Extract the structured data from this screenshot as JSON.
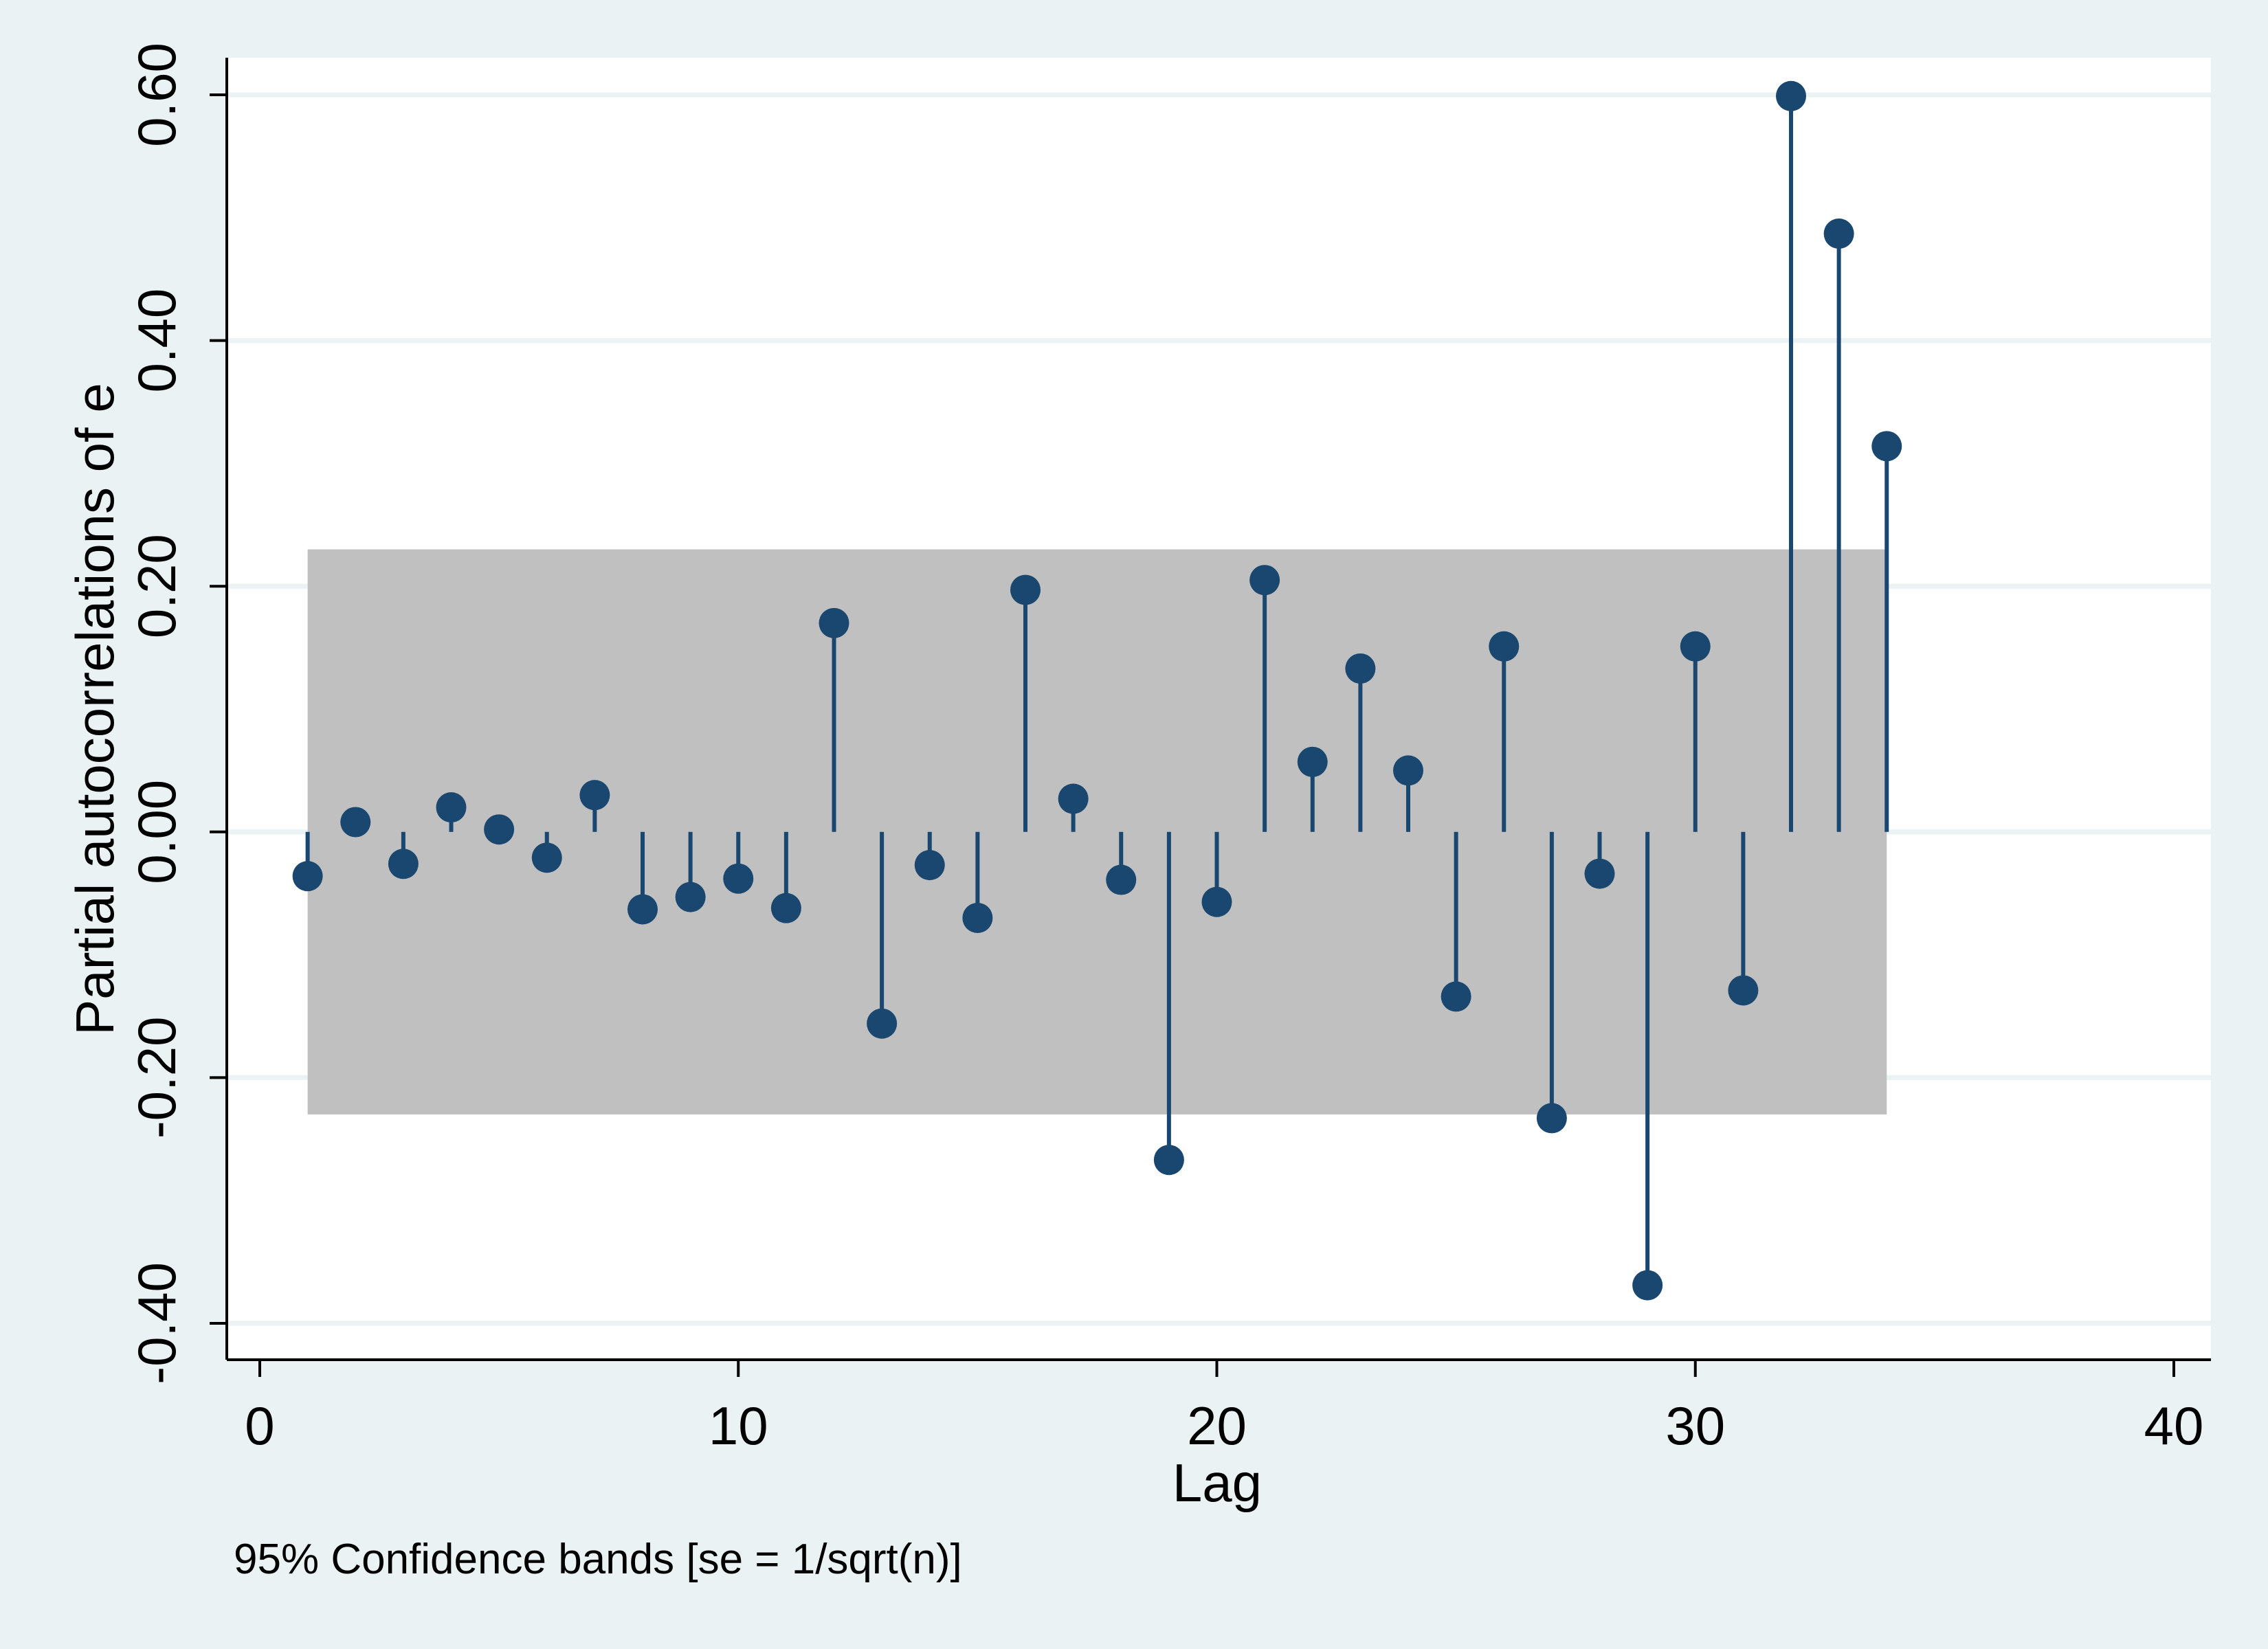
{
  "chart_data": {
    "type": "scatter",
    "subtype": "stem",
    "ylabel": "Partial autocorrelations of e",
    "xlabel": "Lag",
    "note": "95% Confidence bands [se = 1/sqrt(n)]",
    "xlim": [
      0,
      40
    ],
    "ylim": [
      -0.4,
      0.6
    ],
    "xticks": [
      "0",
      "10",
      "20",
      "30",
      "40"
    ],
    "xtick_values": [
      0,
      10,
      20,
      30,
      40
    ],
    "yticks": [
      "-0.40",
      "-0.20",
      "0.00",
      "0.20",
      "0.40",
      "0.60"
    ],
    "ytick_values": [
      -0.4,
      -0.2,
      0.0,
      0.2,
      0.4,
      0.6
    ],
    "grid": true,
    "confidence_band": {
      "from_lag": 1,
      "to_lag": 34,
      "upper": 0.23,
      "lower": -0.23
    },
    "x": [
      1,
      2,
      3,
      4,
      5,
      6,
      7,
      8,
      9,
      10,
      11,
      12,
      13,
      14,
      15,
      16,
      17,
      18,
      19,
      20,
      21,
      22,
      23,
      24,
      25,
      26,
      27,
      28,
      29,
      30,
      31,
      32,
      33,
      34
    ],
    "values": [
      -0.036,
      0.008,
      -0.026,
      0.02,
      0.002,
      -0.021,
      0.03,
      -0.063,
      -0.053,
      -0.038,
      -0.062,
      0.17,
      -0.156,
      -0.027,
      -0.07,
      0.197,
      0.027,
      -0.039,
      -0.267,
      -0.057,
      0.205,
      0.057,
      0.133,
      0.05,
      -0.134,
      0.151,
      -0.233,
      -0.034,
      -0.369,
      0.151,
      -0.129,
      0.599,
      0.487,
      0.314
    ],
    "colors": {
      "background": "#eaf2f3",
      "plot": "#ffffff",
      "band": "#c0c0c0",
      "marker": "#1a476f",
      "grid": "#eaf2f3",
      "axis": "#000000"
    }
  }
}
